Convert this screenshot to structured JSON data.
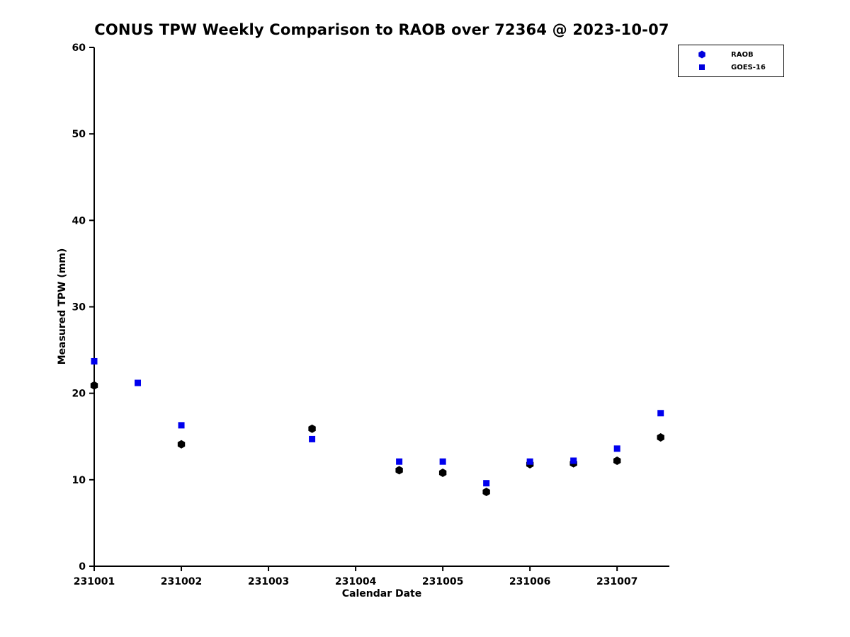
{
  "page": {
    "background": "#ffffff"
  },
  "chart_data": {
    "type": "scatter",
    "title": "CONUS TPW Weekly Comparison to RAOB over 72364 @ 2023-10-07",
    "xlabel": "Calendar Date",
    "ylabel": "Measured TPW (mm)",
    "xlim": [
      231001,
      231007.6
    ],
    "ylim": [
      0,
      60
    ],
    "grid": false,
    "xticks": [
      {
        "value": 231001,
        "label": "231001"
      },
      {
        "value": 231002,
        "label": "231002"
      },
      {
        "value": 231003,
        "label": "231003"
      },
      {
        "value": 231004,
        "label": "231004"
      },
      {
        "value": 231005,
        "label": "231005"
      },
      {
        "value": 231006,
        "label": "231006"
      },
      {
        "value": 231007,
        "label": "231007"
      }
    ],
    "yticks": [
      {
        "value": 0,
        "label": "0"
      },
      {
        "value": 10,
        "label": "10"
      },
      {
        "value": 20,
        "label": "20"
      },
      {
        "value": 30,
        "label": "30"
      },
      {
        "value": 40,
        "label": "40"
      },
      {
        "value": 50,
        "label": "50"
      },
      {
        "value": 60,
        "label": "60"
      }
    ],
    "legend": {
      "position": "top-right",
      "items": [
        {
          "label": "RAOB",
          "marker": "hexagon",
          "color": "#0000dd"
        },
        {
          "label": "GOES-16",
          "marker": "square",
          "color": "#0000dd"
        }
      ]
    },
    "series": [
      {
        "name": "RAOB",
        "marker": "hexagon",
        "color": "#000000",
        "points": [
          [
            231001,
            20.9
          ],
          [
            231002,
            14.1
          ],
          [
            231003.5,
            15.9
          ],
          [
            231004.5,
            11.1
          ],
          [
            231005,
            10.8
          ],
          [
            231005.5,
            8.6
          ],
          [
            231006,
            11.8
          ],
          [
            231006.5,
            11.9
          ],
          [
            231007,
            12.2
          ],
          [
            231007.5,
            14.9
          ]
        ]
      },
      {
        "name": "GOES-16",
        "marker": "square",
        "color": "#0000ee",
        "points": [
          [
            231001,
            23.7
          ],
          [
            231001.5,
            21.2
          ],
          [
            231002,
            16.3
          ],
          [
            231003.5,
            14.7
          ],
          [
            231004.5,
            12.1
          ],
          [
            231005,
            12.1
          ],
          [
            231005.5,
            9.6
          ],
          [
            231006,
            12.1
          ],
          [
            231006.5,
            12.2
          ],
          [
            231007,
            13.6
          ],
          [
            231007.5,
            17.7
          ]
        ]
      }
    ]
  }
}
